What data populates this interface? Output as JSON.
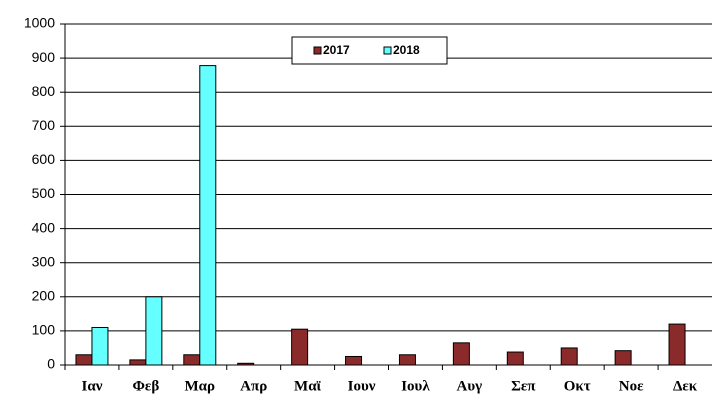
{
  "chart_data": {
    "type": "bar",
    "categories": [
      "Ιαν",
      "Φεβ",
      "Μαρ",
      "Απρ",
      "Μαϊ",
      "Ιουν",
      "Ιουλ",
      "Αυγ",
      "Σεπ",
      "Οκτ",
      "Νοε",
      "Δεκ"
    ],
    "series": [
      {
        "name": "2017",
        "color": "#8b2a2a",
        "values": [
          30,
          15,
          30,
          5,
          105,
          25,
          30,
          65,
          38,
          50,
          42,
          120
        ]
      },
      {
        "name": "2018",
        "color": "#66ffff",
        "values": [
          110,
          200,
          878,
          null,
          null,
          null,
          null,
          null,
          null,
          null,
          null,
          null
        ]
      }
    ],
    "ylim": [
      0,
      1000
    ],
    "yticks": [
      0,
      100,
      200,
      300,
      400,
      500,
      600,
      700,
      800,
      900,
      1000
    ],
    "grid": true,
    "legend": "top"
  }
}
